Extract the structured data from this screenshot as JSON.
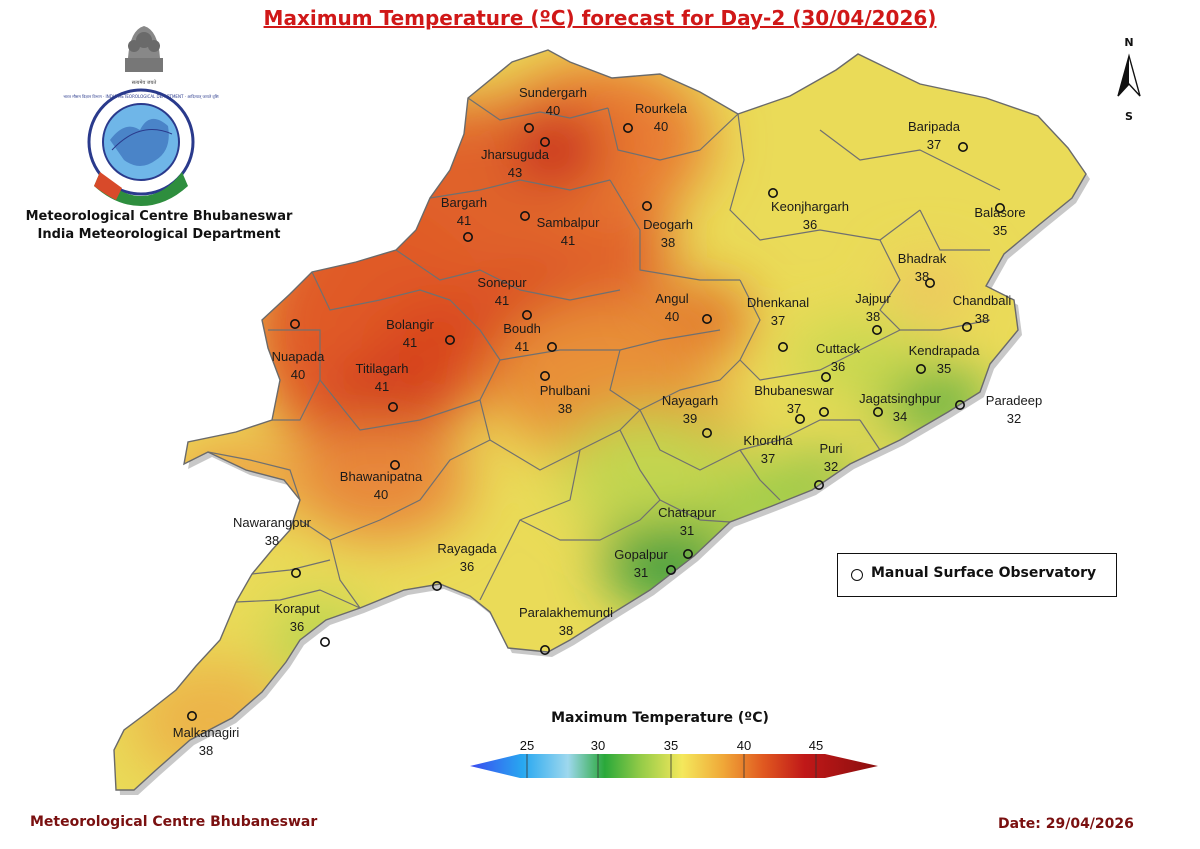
{
  "title": "Maximum Temperature (ºC) forecast for Day-2 (30/04/2026)",
  "org": {
    "line1": "Meteorological Centre Bhubaneswar",
    "line2": "India Meteorological Department",
    "emblem_motto": "सत्यमेव जयते",
    "logo_text": "भारत मौसम विज्ञान विभाग · INDIA METEOROLOGICAL DEPARTMENT · आदित्यात् जायते वृष्टिः"
  },
  "north_arrow": {
    "top_label": "N",
    "bottom_label": "S"
  },
  "legend": {
    "marker_label": "Manual Surface Observatory"
  },
  "color_scale": {
    "title": "Maximum Temperature (ºC)",
    "ticks": [
      "25",
      "30",
      "35",
      "40",
      "45"
    ],
    "colors": [
      "#3a4bf0",
      "#28a8f0",
      "#9ed8ee",
      "#2aa83a",
      "#96cc48",
      "#f4e85c",
      "#f0a838",
      "#e05820",
      "#c01818",
      "#8a0e0e"
    ]
  },
  "stations": [
    {
      "name": "Sundergarh",
      "value": "40"
    },
    {
      "name": "Rourkela",
      "value": "40"
    },
    {
      "name": "Jharsuguda",
      "value": "43"
    },
    {
      "name": "Bargarh",
      "value": "41"
    },
    {
      "name": "Sambalpur",
      "value": "41"
    },
    {
      "name": "Deogarh",
      "value": "38"
    },
    {
      "name": "Keonjhargarh",
      "value": "36"
    },
    {
      "name": "Baripada",
      "value": "37"
    },
    {
      "name": "Balasore",
      "value": "35"
    },
    {
      "name": "Bhadrak",
      "value": "38"
    },
    {
      "name": "Chandbali",
      "value": "38"
    },
    {
      "name": "Sonepur",
      "value": "41"
    },
    {
      "name": "Angul",
      "value": "40"
    },
    {
      "name": "Dhenkanal",
      "value": "37"
    },
    {
      "name": "Jajpur",
      "value": "38"
    },
    {
      "name": "Bolangir",
      "value": "41"
    },
    {
      "name": "Boudh",
      "value": "41"
    },
    {
      "name": "Nuapada",
      "value": "40"
    },
    {
      "name": "Cuttack",
      "value": "36"
    },
    {
      "name": "Kendrapada",
      "value": "35"
    },
    {
      "name": "Titilagarh",
      "value": "41"
    },
    {
      "name": "Phulbani",
      "value": "38"
    },
    {
      "name": "Nayagarh",
      "value": "39"
    },
    {
      "name": "Bhubaneswar",
      "value": "37"
    },
    {
      "name": "Jagatsinghpur",
      "value": "34"
    },
    {
      "name": "Paradeep",
      "value": "32"
    },
    {
      "name": "Khordha",
      "value": "37"
    },
    {
      "name": "Puri",
      "value": "32"
    },
    {
      "name": "Bhawanipatna",
      "value": "40"
    },
    {
      "name": "Chatrapur",
      "value": "31"
    },
    {
      "name": "Nawarangpur",
      "value": "38"
    },
    {
      "name": "Rayagada",
      "value": "36"
    },
    {
      "name": "Gopalpur",
      "value": "31"
    },
    {
      "name": "Koraput",
      "value": "36"
    },
    {
      "name": "Paralakhemundi",
      "value": "38"
    },
    {
      "name": "Malkanagiri",
      "value": "38"
    }
  ],
  "footer": {
    "left": "Meteorological Centre Bhubaneswar",
    "right": "Date: 29/04/2026"
  }
}
